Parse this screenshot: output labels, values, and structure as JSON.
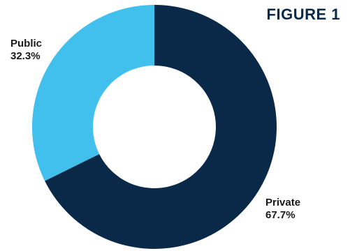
{
  "figure_title": "FIGURE 1",
  "colors": {
    "private": "#0a2948",
    "public": "#41c0ee",
    "hole": "#ffffff"
  },
  "chart_data": {
    "type": "pie",
    "donut": true,
    "slices": [
      {
        "label": "Private",
        "value": 67.7,
        "value_text": "67.7%",
        "color": "#0a2948"
      },
      {
        "label": "Public",
        "value": 32.3,
        "value_text": "32.3%",
        "color": "#41c0ee"
      }
    ],
    "legend": "none"
  }
}
